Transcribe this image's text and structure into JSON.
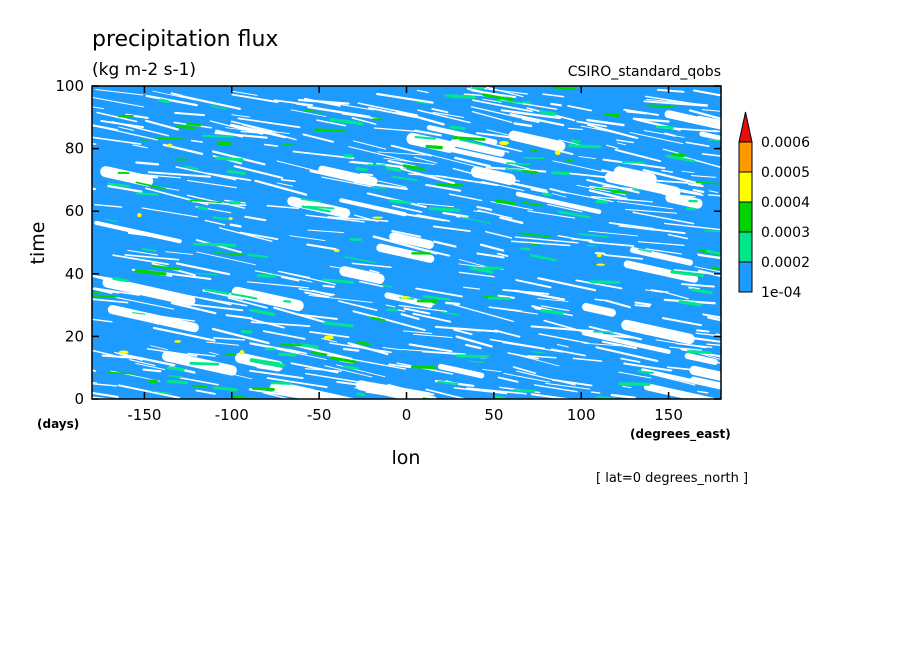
{
  "chart_data": {
    "type": "heatmap",
    "title": "precipitation flux",
    "units": "(kg m-2 s-1)",
    "dataset": "CSIRO_standard_qobs",
    "xlabel": "lon",
    "xunits": "(degrees_east)",
    "ylabel": "time",
    "yunits": "(days)",
    "footer": "[ lat=0 degrees_north ]",
    "xlim": [
      -180,
      180
    ],
    "ylim": [
      0,
      100
    ],
    "xticks": [
      -150,
      -100,
      -50,
      0,
      50,
      100,
      150
    ],
    "yticks": [
      0,
      20,
      40,
      60,
      80,
      100
    ],
    "xtick_labels": [
      "-150",
      "-100",
      "-50",
      "0",
      "50",
      "100",
      "150"
    ],
    "ytick_labels": [
      "0",
      "20",
      "40",
      "60",
      "80",
      "100"
    ],
    "colorbar": {
      "levels": [
        0.0001,
        0.0002,
        0.0003,
        0.0004,
        0.0005,
        0.0006
      ],
      "labels": [
        "1e-04",
        "0.0002",
        "0.0003",
        "0.0004",
        "0.0005",
        "0.0006"
      ],
      "colors": [
        "#1e9bff",
        "#00e68a",
        "#00d400",
        "#ffff00",
        "#ff9900",
        "#e01010"
      ],
      "below_color": "#ffffff",
      "extend": "max"
    },
    "field_description_levels": {
      "background_dominant": 0.00015,
      "dry_streaks": 5e-05,
      "moist_patches": 0.00035
    }
  }
}
